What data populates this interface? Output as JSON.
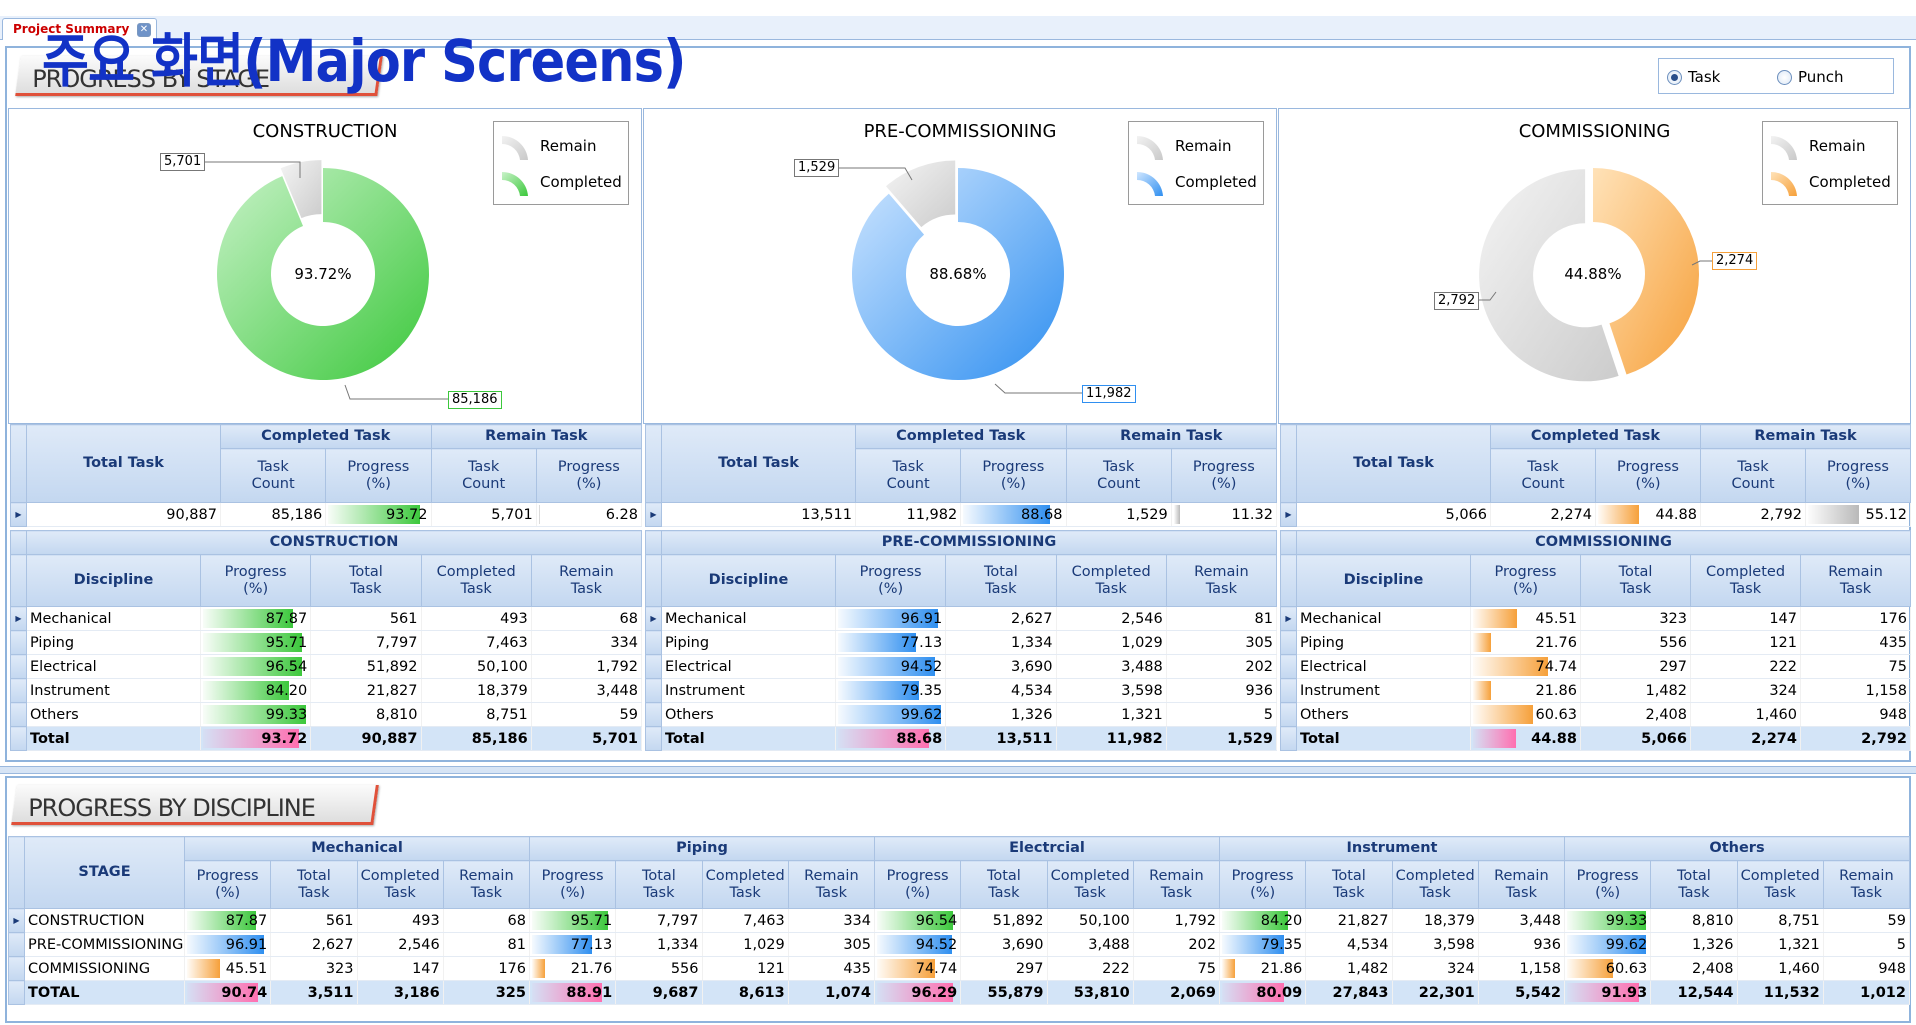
{
  "tab": {
    "label": "Project Summary"
  },
  "headline": "주요 화면(Major Screens)",
  "top_section": {
    "title": "PROGRESS BY STAGE"
  },
  "bottom_section": {
    "title": "PROGRESS BY DISCIPLINE"
  },
  "radio": {
    "task": "Task",
    "punch": "Punch",
    "selected": "Task"
  },
  "legend": {
    "remain": "Remain",
    "completed": "Completed"
  },
  "colors": {
    "construction": "#3cc83c",
    "precommissioning": "#2f8ff0",
    "commissioning": "#f6a03a",
    "remain": "#cfcfcf",
    "total_bar": "#ff6fb0"
  },
  "summary_headers": {
    "total": "Total Task",
    "completed": "Completed Task",
    "remain": "Remain Task",
    "count": "Task Count",
    "progress": "Progress (%)"
  },
  "discipline_headers": {
    "discipline": "Discipline",
    "progress": "Progress (%)",
    "total": "Total Task",
    "completed": "Completed Task",
    "remain": "Remain Task"
  },
  "stages": [
    {
      "name": "CONSTRUCTION",
      "center": "93.72%",
      "remain_label": "5,701",
      "completed_label": "85,186",
      "completed_frac": 0.9372,
      "summary": {
        "total": "90,887",
        "completed": "85,186",
        "completed_pct": "93.72",
        "remain": "5,701",
        "remain_pct": "6.28"
      },
      "rows": [
        {
          "d": "Mechanical",
          "p": "87.87",
          "t": "561",
          "c": "493",
          "r": "68"
        },
        {
          "d": "Piping",
          "p": "95.71",
          "t": "7,797",
          "c": "7,463",
          "r": "334"
        },
        {
          "d": "Electrical",
          "p": "96.54",
          "t": "51,892",
          "c": "50,100",
          "r": "1,792"
        },
        {
          "d": "Instrument",
          "p": "84.20",
          "t": "21,827",
          "c": "18,379",
          "r": "3,448"
        },
        {
          "d": "Others",
          "p": "99.33",
          "t": "8,810",
          "c": "8,751",
          "r": "59"
        }
      ],
      "total": {
        "d": "Total",
        "p": "93.72",
        "t": "90,887",
        "c": "85,186",
        "r": "5,701"
      }
    },
    {
      "name": "PRE-COMMISSIONING",
      "center": "88.68%",
      "remain_label": "1,529",
      "completed_label": "11,982",
      "completed_frac": 0.8868,
      "summary": {
        "total": "13,511",
        "completed": "11,982",
        "completed_pct": "88.68",
        "remain": "1,529",
        "remain_pct": "11.32"
      },
      "rows": [
        {
          "d": "Mechanical",
          "p": "96.91",
          "t": "2,627",
          "c": "2,546",
          "r": "81"
        },
        {
          "d": "Piping",
          "p": "77.13",
          "t": "1,334",
          "c": "1,029",
          "r": "305"
        },
        {
          "d": "Electrical",
          "p": "94.52",
          "t": "3,690",
          "c": "3,488",
          "r": "202"
        },
        {
          "d": "Instrument",
          "p": "79.35",
          "t": "4,534",
          "c": "3,598",
          "r": "936"
        },
        {
          "d": "Others",
          "p": "99.62",
          "t": "1,326",
          "c": "1,321",
          "r": "5"
        }
      ],
      "total": {
        "d": "Total",
        "p": "88.68",
        "t": "13,511",
        "c": "11,982",
        "r": "1,529"
      }
    },
    {
      "name": "COMMISSIONING",
      "center": "44.88%",
      "remain_label": "2,792",
      "completed_label": "2,274",
      "completed_frac": 0.4488,
      "summary": {
        "total": "5,066",
        "completed": "2,274",
        "completed_pct": "44.88",
        "remain": "2,792",
        "remain_pct": "55.12"
      },
      "rows": [
        {
          "d": "Mechanical",
          "p": "45.51",
          "t": "323",
          "c": "147",
          "r": "176"
        },
        {
          "d": "Piping",
          "p": "21.76",
          "t": "556",
          "c": "121",
          "r": "435"
        },
        {
          "d": "Electrical",
          "p": "74.74",
          "t": "297",
          "c": "222",
          "r": "75"
        },
        {
          "d": "Instrument",
          "p": "21.86",
          "t": "1,482",
          "c": "324",
          "r": "1,158"
        },
        {
          "d": "Others",
          "p": "60.63",
          "t": "2,408",
          "c": "1,460",
          "r": "948"
        }
      ],
      "total": {
        "d": "Total",
        "p": "44.88",
        "t": "5,066",
        "c": "2,274",
        "r": "2,792"
      }
    }
  ],
  "bottom": {
    "stage_header": "STAGE",
    "groups": [
      "Mechanical",
      "Piping",
      "Electrcial",
      "Instrument",
      "Others"
    ],
    "sub": {
      "progress": "Progress (%)",
      "total": "Total Task",
      "completed": "Completed Task",
      "remain": "Remain Task"
    },
    "rows": [
      {
        "stage": "CONSTRUCTION",
        "color": "green",
        "cells": [
          [
            "87.87",
            "561",
            "493",
            "68"
          ],
          [
            "95.71",
            "7,797",
            "7,463",
            "334"
          ],
          [
            "96.54",
            "51,892",
            "50,100",
            "1,792"
          ],
          [
            "84.20",
            "21,827",
            "18,379",
            "3,448"
          ],
          [
            "99.33",
            "8,810",
            "8,751",
            "59"
          ]
        ]
      },
      {
        "stage": "PRE-COMMISSIONING",
        "color": "blue",
        "cells": [
          [
            "96.91",
            "2,627",
            "2,546",
            "81"
          ],
          [
            "77.13",
            "1,334",
            "1,029",
            "305"
          ],
          [
            "94.52",
            "3,690",
            "3,488",
            "202"
          ],
          [
            "79.35",
            "4,534",
            "3,598",
            "936"
          ],
          [
            "99.62",
            "1,326",
            "1,321",
            "5"
          ]
        ]
      },
      {
        "stage": "COMMISSIONING",
        "color": "orange",
        "cells": [
          [
            "45.51",
            "323",
            "147",
            "176"
          ],
          [
            "21.76",
            "556",
            "121",
            "435"
          ],
          [
            "74.74",
            "297",
            "222",
            "75"
          ],
          [
            "21.86",
            "1,482",
            "324",
            "1,158"
          ],
          [
            "60.63",
            "2,408",
            "1,460",
            "948"
          ]
        ]
      },
      {
        "stage": "TOTAL",
        "color": "pink",
        "total": true,
        "cells": [
          [
            "90.74",
            "3,511",
            "3,186",
            "325"
          ],
          [
            "88.91",
            "9,687",
            "8,613",
            "1,074"
          ],
          [
            "96.29",
            "55,879",
            "53,810",
            "2,069"
          ],
          [
            "80.09",
            "27,843",
            "22,301",
            "5,542"
          ],
          [
            "91.93",
            "12,544",
            "11,532",
            "1,012"
          ]
        ]
      }
    ]
  }
}
